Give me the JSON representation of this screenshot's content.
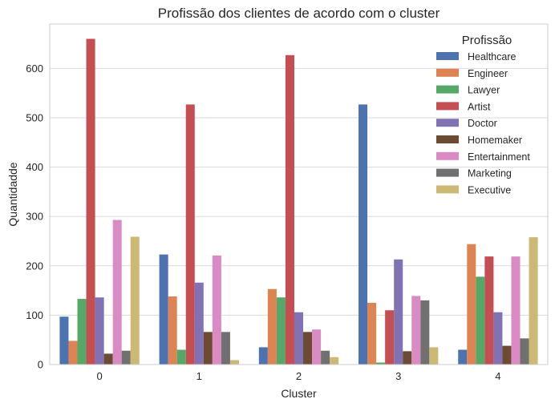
{
  "chart_data": {
    "type": "bar",
    "title": "Profissão dos clientes de acordo com o cluster",
    "xlabel": "Cluster",
    "ylabel": "Quantidadde",
    "categories": [
      "0",
      "1",
      "2",
      "3",
      "4"
    ],
    "ylim": [
      0,
      690
    ],
    "yticks": [
      0,
      100,
      200,
      300,
      400,
      500,
      600
    ],
    "grid": true,
    "legend": {
      "title": "Profissão",
      "placement": "top-right"
    },
    "series": [
      {
        "name": "Healthcare",
        "color": "#4c72b0",
        "values": [
          97,
          223,
          35,
          527,
          30
        ]
      },
      {
        "name": "Engineer",
        "color": "#dd8452",
        "values": [
          48,
          138,
          153,
          125,
          244
        ]
      },
      {
        "name": "Lawyer",
        "color": "#55a868",
        "values": [
          133,
          30,
          136,
          4,
          178
        ]
      },
      {
        "name": "Artist",
        "color": "#c44e52",
        "values": [
          660,
          527,
          627,
          110,
          219
        ]
      },
      {
        "name": "Doctor",
        "color": "#8172b3",
        "values": [
          136,
          166,
          106,
          213,
          106
        ]
      },
      {
        "name": "Homemaker",
        "color": "#6b4c33",
        "values": [
          22,
          66,
          66,
          27,
          38
        ]
      },
      {
        "name": "Entertainment",
        "color": "#da8bc3",
        "values": [
          293,
          221,
          71,
          139,
          219
        ]
      },
      {
        "name": "Marketing",
        "color": "#707070",
        "values": [
          28,
          66,
          28,
          130,
          53
        ]
      },
      {
        "name": "Executive",
        "color": "#ccb974",
        "values": [
          259,
          9,
          15,
          35,
          258
        ]
      }
    ]
  }
}
